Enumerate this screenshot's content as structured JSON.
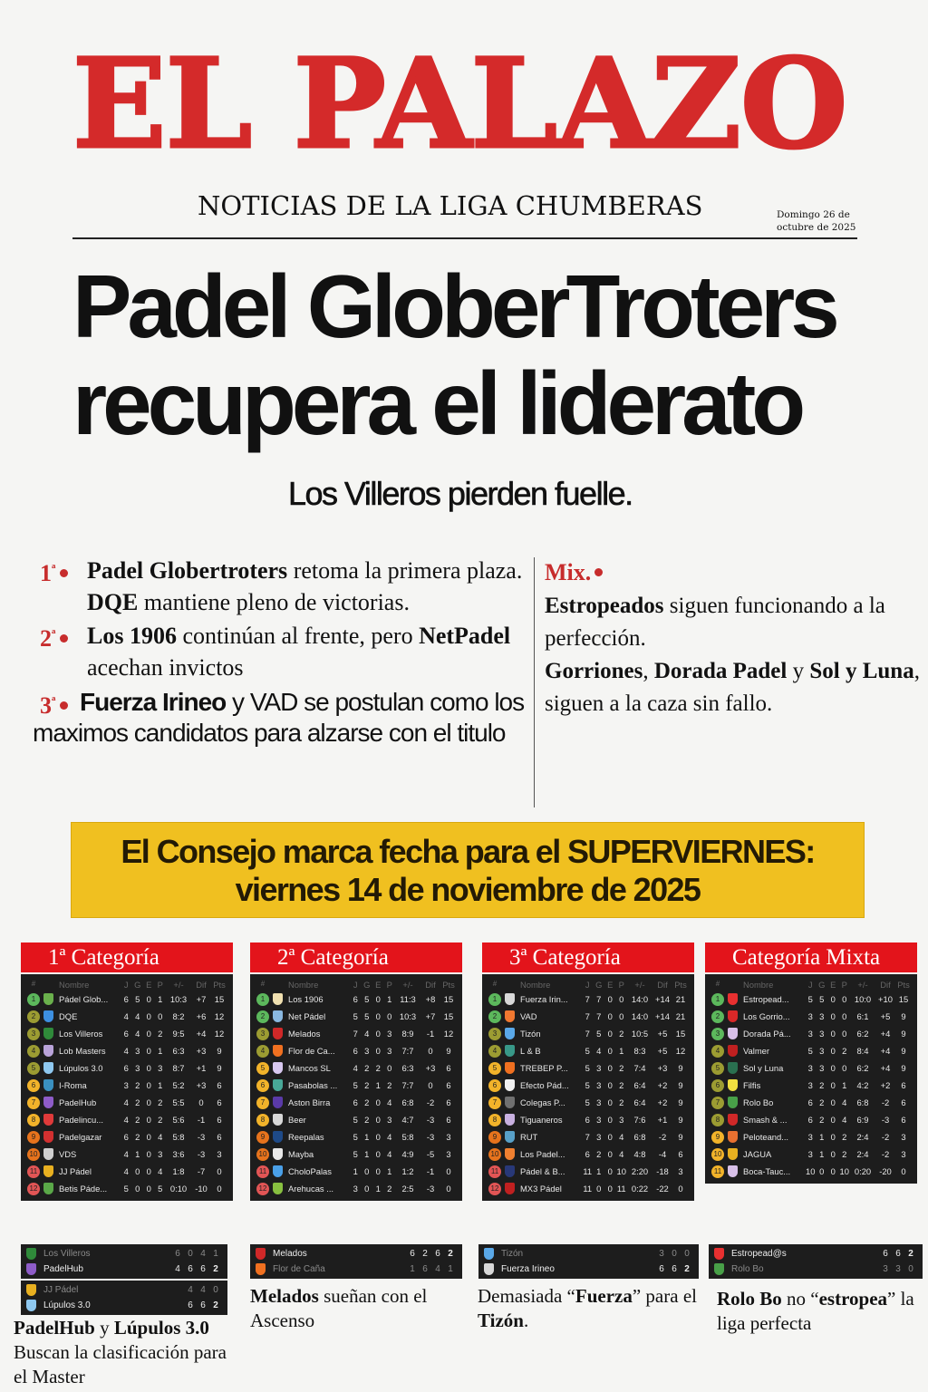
{
  "masthead": {
    "title": "EL PALAZO",
    "tagline": "NOTICIAS DE LA LIGA CHUMBERAS",
    "date": "Domingo 26 de octubre de 2025"
  },
  "headline": {
    "line1": "Padel GloberTroters",
    "line2": "recupera el liderato",
    "subtitle": "Los Villeros pierden fuelle."
  },
  "summaries": [
    {
      "num": "1",
      "sup": "ª",
      "segments": [
        {
          "t": "Padel Globertroters",
          "b": true
        },
        {
          "t": " retoma la primera plaza. "
        },
        {
          "t": "DQE",
          "b": true
        },
        {
          "t": " mantiene pleno de victorias."
        }
      ]
    },
    {
      "num": "2",
      "sup": "ª",
      "segments": [
        {
          "t": "Los 1906",
          "b": true
        },
        {
          "t": " continúan al frente, pero "
        },
        {
          "t": "NetPadel",
          "b": true
        },
        {
          "t": " acechan invictos"
        }
      ]
    },
    {
      "num": "3",
      "sup": "ª",
      "sans": true,
      "segments": [
        {
          "t": "Fuerza Irineo",
          "b": true
        },
        {
          "t": " y VAD se postulan como los maximos candidatos para alzarse con el titulo"
        }
      ]
    }
  ],
  "mix": {
    "label": "Mix.",
    "segments": [
      {
        "t": "Estropeados",
        "b": true
      },
      {
        "t": " siguen funcionando a la perfección."
      },
      {
        "br": true
      },
      {
        "t": "Gorriones",
        "b": true
      },
      {
        "t": ", "
      },
      {
        "t": "Dorada Padel",
        "b": true
      },
      {
        "t": " y "
      },
      {
        "t": "Sol y Luna",
        "b": true
      },
      {
        "t": ", siguen a la caza sin fallo."
      }
    ]
  },
  "banner": {
    "line1": "El Consejo marca fecha para el SUPERVIERNES:",
    "line2": "viernes 14 de noviembre de 2025"
  },
  "zone_colors": {
    "green": "#5cb85c",
    "olive": "#9c9c32",
    "yellow": "#f2b32a",
    "orange": "#e7731c",
    "red": "#e25555"
  },
  "table_columns": [
    "#",
    "Nombre",
    "J",
    "G",
    "E",
    "P",
    "+/-",
    "Dif",
    "Pts"
  ],
  "categories": [
    {
      "title": "1ª Categoría",
      "rows": [
        [
          "1",
          "Pádel Glob...",
          "6",
          "5",
          "0",
          "1",
          "10:3",
          "+7",
          "15",
          "green",
          "#6ab04c"
        ],
        [
          "2",
          "DQE",
          "4",
          "4",
          "0",
          "0",
          "8:2",
          "+6",
          "12",
          "olive",
          "#3d8fe0"
        ],
        [
          "3",
          "Los Villeros",
          "6",
          "4",
          "0",
          "2",
          "9:5",
          "+4",
          "12",
          "olive",
          "#2f8a3a"
        ],
        [
          "4",
          "Lob Masters",
          "4",
          "3",
          "0",
          "1",
          "6:3",
          "+3",
          "9",
          "olive",
          "#b9a3d9"
        ],
        [
          "5",
          "Lúpulos 3.0",
          "6",
          "3",
          "0",
          "3",
          "8:7",
          "+1",
          "9",
          "olive",
          "#8ec8f0"
        ],
        [
          "6",
          "I-Roma",
          "3",
          "2",
          "0",
          "1",
          "5:2",
          "+3",
          "6",
          "yellow",
          "#3a90c0"
        ],
        [
          "7",
          "PadelHub",
          "4",
          "2",
          "0",
          "2",
          "5:5",
          "0",
          "6",
          "yellow",
          "#8e5cc8"
        ],
        [
          "8",
          "Padelincu...",
          "4",
          "2",
          "0",
          "2",
          "5:6",
          "-1",
          "6",
          "yellow",
          "#e03a3a"
        ],
        [
          "9",
          "Padelgazar",
          "6",
          "2",
          "0",
          "4",
          "5:8",
          "-3",
          "6",
          "orange",
          "#d23030"
        ],
        [
          "10",
          "VDS",
          "4",
          "1",
          "0",
          "3",
          "3:6",
          "-3",
          "3",
          "orange",
          "#cfcfcf"
        ],
        [
          "11",
          "JJ Pádel",
          "4",
          "0",
          "0",
          "4",
          "1:8",
          "-7",
          "0",
          "red",
          "#e8b020"
        ],
        [
          "12",
          "Betis Páde...",
          "5",
          "0",
          "0",
          "5",
          "0:10",
          "-10",
          "0",
          "red",
          "#5aa848"
        ]
      ]
    },
    {
      "title": "2ª Categoría",
      "rows": [
        [
          "1",
          "Los 1906",
          "6",
          "5",
          "0",
          "1",
          "11:3",
          "+8",
          "15",
          "green",
          "#f0e0b0"
        ],
        [
          "2",
          "Net Pádel",
          "5",
          "5",
          "0",
          "0",
          "10:3",
          "+7",
          "15",
          "green",
          "#8ab8e0"
        ],
        [
          "3",
          "Melados",
          "7",
          "4",
          "0",
          "3",
          "8:9",
          "-1",
          "12",
          "olive",
          "#d02828"
        ],
        [
          "4",
          "Flor de Ca...",
          "6",
          "3",
          "0",
          "3",
          "7:7",
          "0",
          "9",
          "olive",
          "#f07020"
        ],
        [
          "5",
          "Mancos SL",
          "4",
          "2",
          "2",
          "0",
          "6:3",
          "+3",
          "6",
          "yellow",
          "#d8c8f0"
        ],
        [
          "6",
          "Pasabolas ...",
          "5",
          "2",
          "1",
          "2",
          "7:7",
          "0",
          "6",
          "yellow",
          "#48a898"
        ],
        [
          "7",
          "Aston Birra",
          "6",
          "2",
          "0",
          "4",
          "6:8",
          "-2",
          "6",
          "yellow",
          "#5a3aa8"
        ],
        [
          "8",
          "Beer",
          "5",
          "2",
          "0",
          "3",
          "4:7",
          "-3",
          "6",
          "yellow",
          "#d8d8d8"
        ],
        [
          "9",
          "Reepalas",
          "5",
          "1",
          "0",
          "4",
          "5:8",
          "-3",
          "3",
          "orange",
          "#1e4a88"
        ],
        [
          "10",
          "Mayba",
          "5",
          "1",
          "0",
          "4",
          "4:9",
          "-5",
          "3",
          "orange",
          "#e8e8e8"
        ],
        [
          "11",
          "CholoPalas",
          "1",
          "0",
          "0",
          "1",
          "1:2",
          "-1",
          "0",
          "red",
          "#4aa0e8"
        ],
        [
          "12",
          "Arehucas ...",
          "3",
          "0",
          "1",
          "2",
          "2:5",
          "-3",
          "0",
          "red",
          "#88c040"
        ]
      ]
    },
    {
      "title": "3ª Categoría",
      "rows": [
        [
          "1",
          "Fuerza Irin...",
          "7",
          "7",
          "0",
          "0",
          "14:0",
          "+14",
          "21",
          "green",
          "#d8d8d8"
        ],
        [
          "2",
          "VAD",
          "7",
          "7",
          "0",
          "0",
          "14:0",
          "+14",
          "21",
          "green",
          "#f07830"
        ],
        [
          "3",
          "Tizón",
          "7",
          "5",
          "0",
          "2",
          "10:5",
          "+5",
          "15",
          "olive",
          "#5aa8e8"
        ],
        [
          "4",
          "L & B",
          "5",
          "4",
          "0",
          "1",
          "8:3",
          "+5",
          "12",
          "olive",
          "#389888"
        ],
        [
          "5",
          "TREBEP P...",
          "5",
          "3",
          "0",
          "2",
          "7:4",
          "+3",
          "9",
          "yellow",
          "#f07020"
        ],
        [
          "6",
          "Efecto Pád...",
          "5",
          "3",
          "0",
          "2",
          "6:4",
          "+2",
          "9",
          "yellow",
          "#f0f0f0"
        ],
        [
          "7",
          "Colegas P...",
          "5",
          "3",
          "0",
          "2",
          "6:4",
          "+2",
          "9",
          "yellow",
          "#707070"
        ],
        [
          "8",
          "Tiguaneros",
          "6",
          "3",
          "0",
          "3",
          "7:6",
          "+1",
          "9",
          "yellow",
          "#c8b0e0"
        ],
        [
          "9",
          "RUT",
          "7",
          "3",
          "0",
          "4",
          "6:8",
          "-2",
          "9",
          "orange",
          "#58a0c8"
        ],
        [
          "10",
          "Los Padel...",
          "6",
          "2",
          "0",
          "4",
          "4:8",
          "-4",
          "6",
          "orange",
          "#f08030"
        ],
        [
          "11",
          "Pádel & B...",
          "11",
          "1",
          "0",
          "10",
          "2:20",
          "-18",
          "3",
          "red",
          "#283878"
        ],
        [
          "12",
          "MX3 Pádel",
          "11",
          "0",
          "0",
          "11",
          "0:22",
          "-22",
          "0",
          "red",
          "#c02020"
        ]
      ]
    },
    {
      "title": "Categoría Mixta",
      "rows": [
        [
          "1",
          "Estropead...",
          "5",
          "5",
          "0",
          "0",
          "10:0",
          "+10",
          "15",
          "green",
          "#e83030"
        ],
        [
          "2",
          "Los Gorrio...",
          "3",
          "3",
          "0",
          "0",
          "6:1",
          "+5",
          "9",
          "green",
          "#d82828"
        ],
        [
          "3",
          "Dorada Pá...",
          "3",
          "3",
          "0",
          "0",
          "6:2",
          "+4",
          "9",
          "green",
          "#d8c0e8"
        ],
        [
          "4",
          "Valmer",
          "5",
          "3",
          "0",
          "2",
          "8:4",
          "+4",
          "9",
          "olive",
          "#c02020"
        ],
        [
          "5",
          "Sol y Luna",
          "3",
          "3",
          "0",
          "0",
          "6:2",
          "+4",
          "9",
          "olive",
          "#2a7050"
        ],
        [
          "6",
          "Filfis",
          "3",
          "2",
          "0",
          "1",
          "4:2",
          "+2",
          "6",
          "olive",
          "#f0e040"
        ],
        [
          "7",
          "Rolo Bo",
          "6",
          "2",
          "0",
          "4",
          "6:8",
          "-2",
          "6",
          "olive",
          "#48a048"
        ],
        [
          "8",
          "Smash & ...",
          "6",
          "2",
          "0",
          "4",
          "6:9",
          "-3",
          "6",
          "olive",
          "#d02828"
        ],
        [
          "9",
          "Peloteand...",
          "3",
          "1",
          "0",
          "2",
          "2:4",
          "-2",
          "3",
          "yellow",
          "#e87030"
        ],
        [
          "10",
          "JAGUA",
          "3",
          "1",
          "0",
          "2",
          "2:4",
          "-2",
          "3",
          "yellow",
          "#e8b020"
        ],
        [
          "11",
          "Boca-Tauc...",
          "10",
          "0",
          "0",
          "10",
          "0:20",
          "-20",
          "0",
          "yellow",
          "#d8c0e8"
        ]
      ]
    }
  ],
  "matches": [
    [
      {
        "rows": [
          {
            "crest": "#2f8a3a",
            "name": "Los Villeros",
            "scores": [
              "6",
              "0",
              "4",
              "1"
            ],
            "win": false
          },
          {
            "crest": "#8e5cc8",
            "name": "PadelHub",
            "scores": [
              "4",
              "6",
              "6",
              "2"
            ],
            "win": true
          }
        ]
      },
      {
        "rows": [
          {
            "crest": "#e8b020",
            "name": "JJ Pádel",
            "scores": [
              "4",
              "4",
              "0"
            ],
            "win": false
          },
          {
            "crest": "#8ec8f0",
            "name": "Lúpulos 3.0",
            "scores": [
              "6",
              "6",
              "2"
            ],
            "win": true
          }
        ]
      }
    ],
    [
      {
        "rows": [
          {
            "crest": "#d02828",
            "name": "Melados",
            "scores": [
              "6",
              "2",
              "6",
              "2"
            ],
            "win": true
          },
          {
            "crest": "#f07020",
            "name": "Flor de Caña",
            "scores": [
              "1",
              "6",
              "4",
              "1"
            ],
            "win": false
          }
        ]
      }
    ],
    [
      {
        "rows": [
          {
            "crest": "#5aa8e8",
            "name": "Tizón",
            "scores": [
              "3",
              "0",
              "0"
            ],
            "win": false
          },
          {
            "crest": "#d8d8d8",
            "name": "Fuerza Irineo",
            "scores": [
              "6",
              "6",
              "2"
            ],
            "win": true
          }
        ]
      }
    ],
    [
      {
        "rows": [
          {
            "crest": "#e83030",
            "name": "Estropead@s",
            "scores": [
              "6",
              "6",
              "2"
            ],
            "win": true
          },
          {
            "crest": "#48a048",
            "name": "Rolo Bo",
            "scores": [
              "3",
              "3",
              "0"
            ],
            "win": false
          }
        ]
      }
    ]
  ],
  "captions": [
    [
      {
        "t": "PadelHub",
        "b": true
      },
      {
        "t": " y "
      },
      {
        "t": "Lúpulos 3.0",
        "b": true
      },
      {
        "br": true
      },
      {
        "t": "Buscan la clasificación para el Master"
      }
    ],
    [
      {
        "t": "Melados",
        "b": true
      },
      {
        "t": " sueñan con el Ascenso"
      }
    ],
    [
      {
        "t": "Demasiada “"
      },
      {
        "t": "Fuerza",
        "b": true
      },
      {
        "t": "” para el "
      },
      {
        "t": "Tizón",
        "b": true
      },
      {
        "t": "."
      }
    ],
    [
      {
        "t": "Rolo Bo",
        "b": true
      },
      {
        "t": " no “"
      },
      {
        "t": "estropea",
        "b": true
      },
      {
        "t": "” la liga perfecta"
      }
    ]
  ]
}
